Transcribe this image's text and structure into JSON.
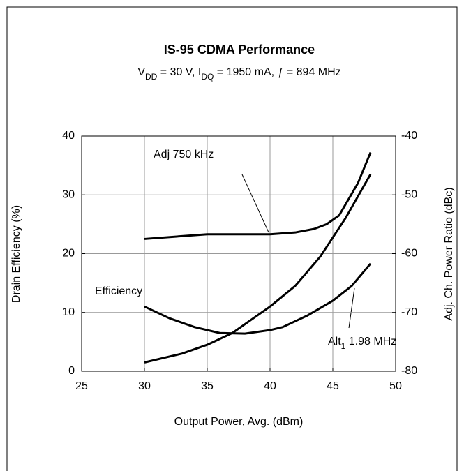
{
  "chart_data": {
    "type": "line",
    "title": "IS-95 CDMA Performance",
    "subtitle": [
      "V",
      "DD",
      " = 30 V,  I",
      "DQ",
      " = 1950 mA, ",
      "ƒ",
      " = 894 MHz"
    ],
    "x_label": "Output Power, Avg. (dBm)",
    "y_label": "Drain Efficiency (%)",
    "y2_label": "Adj. Ch. Power Ratio (dBc)",
    "xlim": [
      25,
      50
    ],
    "xticks": [
      25,
      30,
      35,
      40,
      45,
      50
    ],
    "ylim": [
      0,
      40
    ],
    "yticks": [
      0,
      10,
      20,
      30,
      40
    ],
    "y2lim": [
      -80,
      -40
    ],
    "y2ticks": [
      -80,
      -70,
      -60,
      -50,
      -40
    ],
    "grid": true,
    "series": [
      {
        "name": "Efficiency",
        "color": "#000000",
        "axis": "y",
        "x": [
          30,
          33,
          35,
          37,
          40,
          42,
          44,
          46,
          48
        ],
        "values": [
          1.5,
          3,
          4.5,
          6.5,
          11,
          14.5,
          19.5,
          26,
          33.5
        ]
      },
      {
        "name": "Adj 750 kHz",
        "color": "#000000",
        "axis": "y2",
        "x": [
          30,
          35,
          40,
          42,
          43.5,
          44.5,
          45.5,
          47,
          48
        ],
        "values": [
          -57.5,
          -56.7,
          -56.7,
          -56.4,
          -55.8,
          -55,
          -53.5,
          -48,
          -42.8
        ]
      },
      {
        "name": [
          "Alt",
          "1",
          " 1.98 MHz"
        ],
        "color": "#000000",
        "axis": "y2",
        "x": [
          30,
          32,
          34,
          36,
          38,
          40,
          41,
          43,
          45,
          46.5,
          48
        ],
        "values": [
          -69,
          -71,
          -72.5,
          -73.5,
          -73.6,
          -73,
          -72.5,
          -70.5,
          -68,
          -65.5,
          -61.7
        ]
      }
    ]
  }
}
